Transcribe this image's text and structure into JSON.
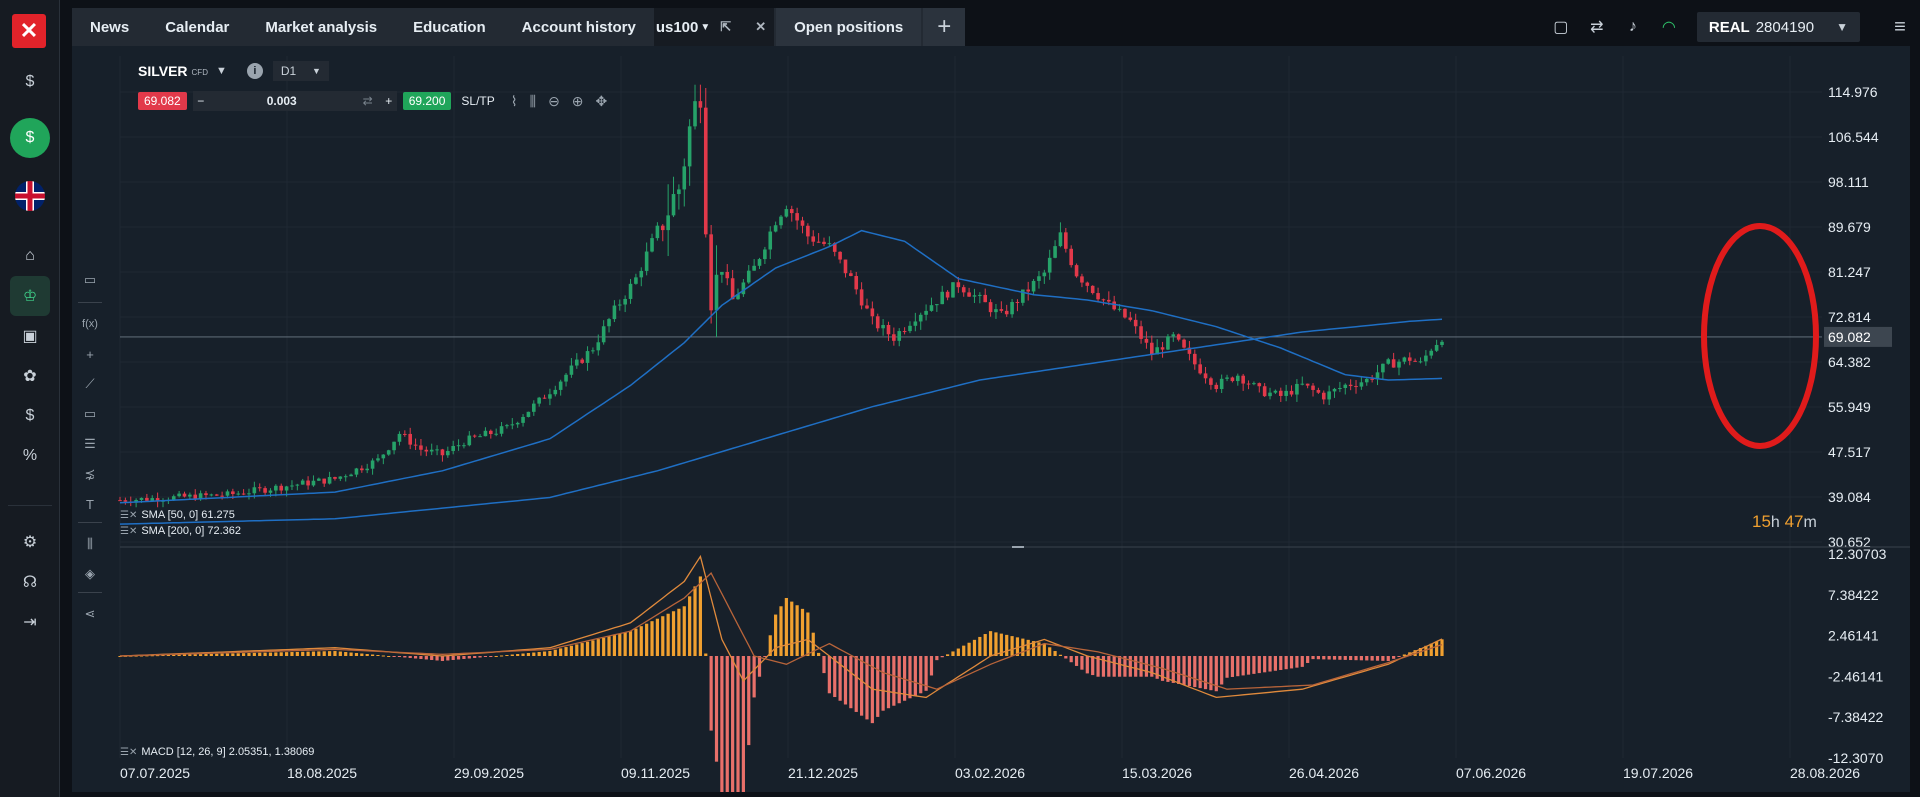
{
  "nav": {
    "tabs": [
      {
        "label": "News"
      },
      {
        "label": "Calendar"
      },
      {
        "label": "Market analysis"
      },
      {
        "label": "Education"
      },
      {
        "label": "Account history"
      }
    ],
    "current_tab": "us100",
    "open_positions": "Open positions"
  },
  "account": {
    "type": "REAL",
    "number": "2804190"
  },
  "symbol": {
    "name": "SILVER",
    "kind": "CFD",
    "timeframe": "D1"
  },
  "trade": {
    "sell_price": "69.082",
    "quantity": "0.003",
    "buy_price": "69.200",
    "sltp": "SL/TP"
  },
  "countdown": {
    "hours": "15",
    "h_unit": "h",
    "minutes": "47",
    "m_unit": "m"
  },
  "indicators": {
    "sma50": "SMA [50, 0] 61.275",
    "sma200": "SMA [200, 0] 72.362",
    "macd": "MACD [12, 26, 9] 2.05351, 1.38069"
  },
  "colors": {
    "bull": "#26a269",
    "bear": "#e2394a",
    "sma": "#1f6fc4",
    "macd": "#e08a3c",
    "signal": "#b8643a",
    "highlight": "#e01b1b"
  },
  "chart_data": {
    "type": "candlestick",
    "price_axis": {
      "ticks": [
        "114.976",
        "106.544",
        "98.111",
        "89.679",
        "81.247",
        "72.814",
        "64.382",
        "55.949",
        "47.517",
        "39.084",
        "30.652"
      ],
      "current_price": "69.082",
      "ylim": [
        30.652,
        114.976
      ]
    },
    "macd_axis": {
      "ticks": [
        "12.30703",
        "7.38422",
        "2.46141",
        "-2.46141",
        "-7.38422",
        "-12.3070"
      ],
      "ylim": [
        -12.307,
        12.307
      ]
    },
    "x_axis": {
      "ticks": [
        "07.07.2025",
        "18.08.2025",
        "29.09.2025",
        "09.11.2025",
        "21.12.2025",
        "03.02.2026",
        "15.03.2026",
        "26.04.2026",
        "07.06.2026",
        "19.07.2026",
        "28.08.2026"
      ]
    },
    "price_path": [
      [
        0,
        38.5
      ],
      [
        20,
        39.5
      ],
      [
        30,
        41
      ],
      [
        40,
        42.5
      ],
      [
        48,
        46
      ],
      [
        52,
        51
      ],
      [
        56,
        48
      ],
      [
        60,
        47
      ],
      [
        64,
        49.5
      ],
      [
        72,
        52
      ],
      [
        78,
        57
      ],
      [
        84,
        63
      ],
      [
        88,
        67
      ],
      [
        92,
        74
      ],
      [
        96,
        80
      ],
      [
        100,
        89
      ],
      [
        104,
        97
      ],
      [
        106,
        108
      ],
      [
        108,
        116
      ],
      [
        109,
        92
      ],
      [
        110,
        77
      ],
      [
        112,
        82
      ],
      [
        114,
        76
      ],
      [
        118,
        82
      ],
      [
        122,
        91
      ],
      [
        124,
        94
      ],
      [
        128,
        88
      ],
      [
        132,
        86
      ],
      [
        136,
        80
      ],
      [
        140,
        72
      ],
      [
        144,
        69
      ],
      [
        148,
        73
      ],
      [
        152,
        76
      ],
      [
        156,
        79
      ],
      [
        160,
        76
      ],
      [
        164,
        73
      ],
      [
        168,
        77
      ],
      [
        172,
        81
      ],
      [
        175,
        88
      ],
      [
        178,
        81
      ],
      [
        184,
        75
      ],
      [
        188,
        72
      ],
      [
        192,
        66
      ],
      [
        196,
        69
      ],
      [
        200,
        64
      ],
      [
        204,
        60
      ],
      [
        208,
        62
      ],
      [
        212,
        59
      ],
      [
        216,
        58
      ],
      [
        220,
        60
      ],
      [
        224,
        58
      ],
      [
        228,
        60
      ],
      [
        232,
        61
      ],
      [
        236,
        64
      ],
      [
        240,
        65
      ],
      [
        242,
        64
      ],
      [
        244,
        67
      ],
      [
        246,
        69.1
      ]
    ],
    "sma50_path": [
      [
        0,
        38
      ],
      [
        40,
        40
      ],
      [
        60,
        44
      ],
      [
        80,
        50
      ],
      [
        95,
        60
      ],
      [
        105,
        68
      ],
      [
        112,
        75
      ],
      [
        122,
        82
      ],
      [
        132,
        86
      ],
      [
        138,
        89
      ],
      [
        146,
        87
      ],
      [
        156,
        80
      ],
      [
        170,
        77
      ],
      [
        180,
        76
      ],
      [
        192,
        74
      ],
      [
        204,
        71
      ],
      [
        216,
        67
      ],
      [
        228,
        62
      ],
      [
        236,
        61
      ],
      [
        246,
        61.3
      ]
    ],
    "sma200_path": [
      [
        0,
        34
      ],
      [
        40,
        35
      ],
      [
        80,
        39
      ],
      [
        100,
        44
      ],
      [
        120,
        50
      ],
      [
        140,
        56
      ],
      [
        160,
        61
      ],
      [
        180,
        64
      ],
      [
        200,
        67
      ],
      [
        220,
        70
      ],
      [
        240,
        72
      ],
      [
        246,
        72.4
      ]
    ],
    "macd_path": [
      [
        0,
        0
      ],
      [
        40,
        1
      ],
      [
        60,
        0
      ],
      [
        80,
        1
      ],
      [
        95,
        4
      ],
      [
        105,
        9
      ],
      [
        108,
        12
      ],
      [
        112,
        2
      ],
      [
        116,
        -3
      ],
      [
        122,
        1
      ],
      [
        128,
        2
      ],
      [
        140,
        -4
      ],
      [
        150,
        -5
      ],
      [
        162,
        0
      ],
      [
        172,
        2
      ],
      [
        180,
        0
      ],
      [
        192,
        -2
      ],
      [
        204,
        -5
      ],
      [
        220,
        -4
      ],
      [
        236,
        -1
      ],
      [
        246,
        2.05
      ]
    ],
    "signal_path": [
      [
        0,
        0
      ],
      [
        40,
        0.8
      ],
      [
        60,
        0.2
      ],
      [
        80,
        0.8
      ],
      [
        95,
        3
      ],
      [
        105,
        7
      ],
      [
        110,
        10
      ],
      [
        114,
        5
      ],
      [
        118,
        0
      ],
      [
        124,
        -1
      ],
      [
        132,
        1.5
      ],
      [
        142,
        -2
      ],
      [
        152,
        -4
      ],
      [
        162,
        -1
      ],
      [
        172,
        1.5
      ],
      [
        182,
        0.5
      ],
      [
        194,
        -1.5
      ],
      [
        206,
        -4
      ],
      [
        222,
        -3.5
      ],
      [
        236,
        -0.8
      ],
      [
        246,
        1.38
      ]
    ]
  }
}
